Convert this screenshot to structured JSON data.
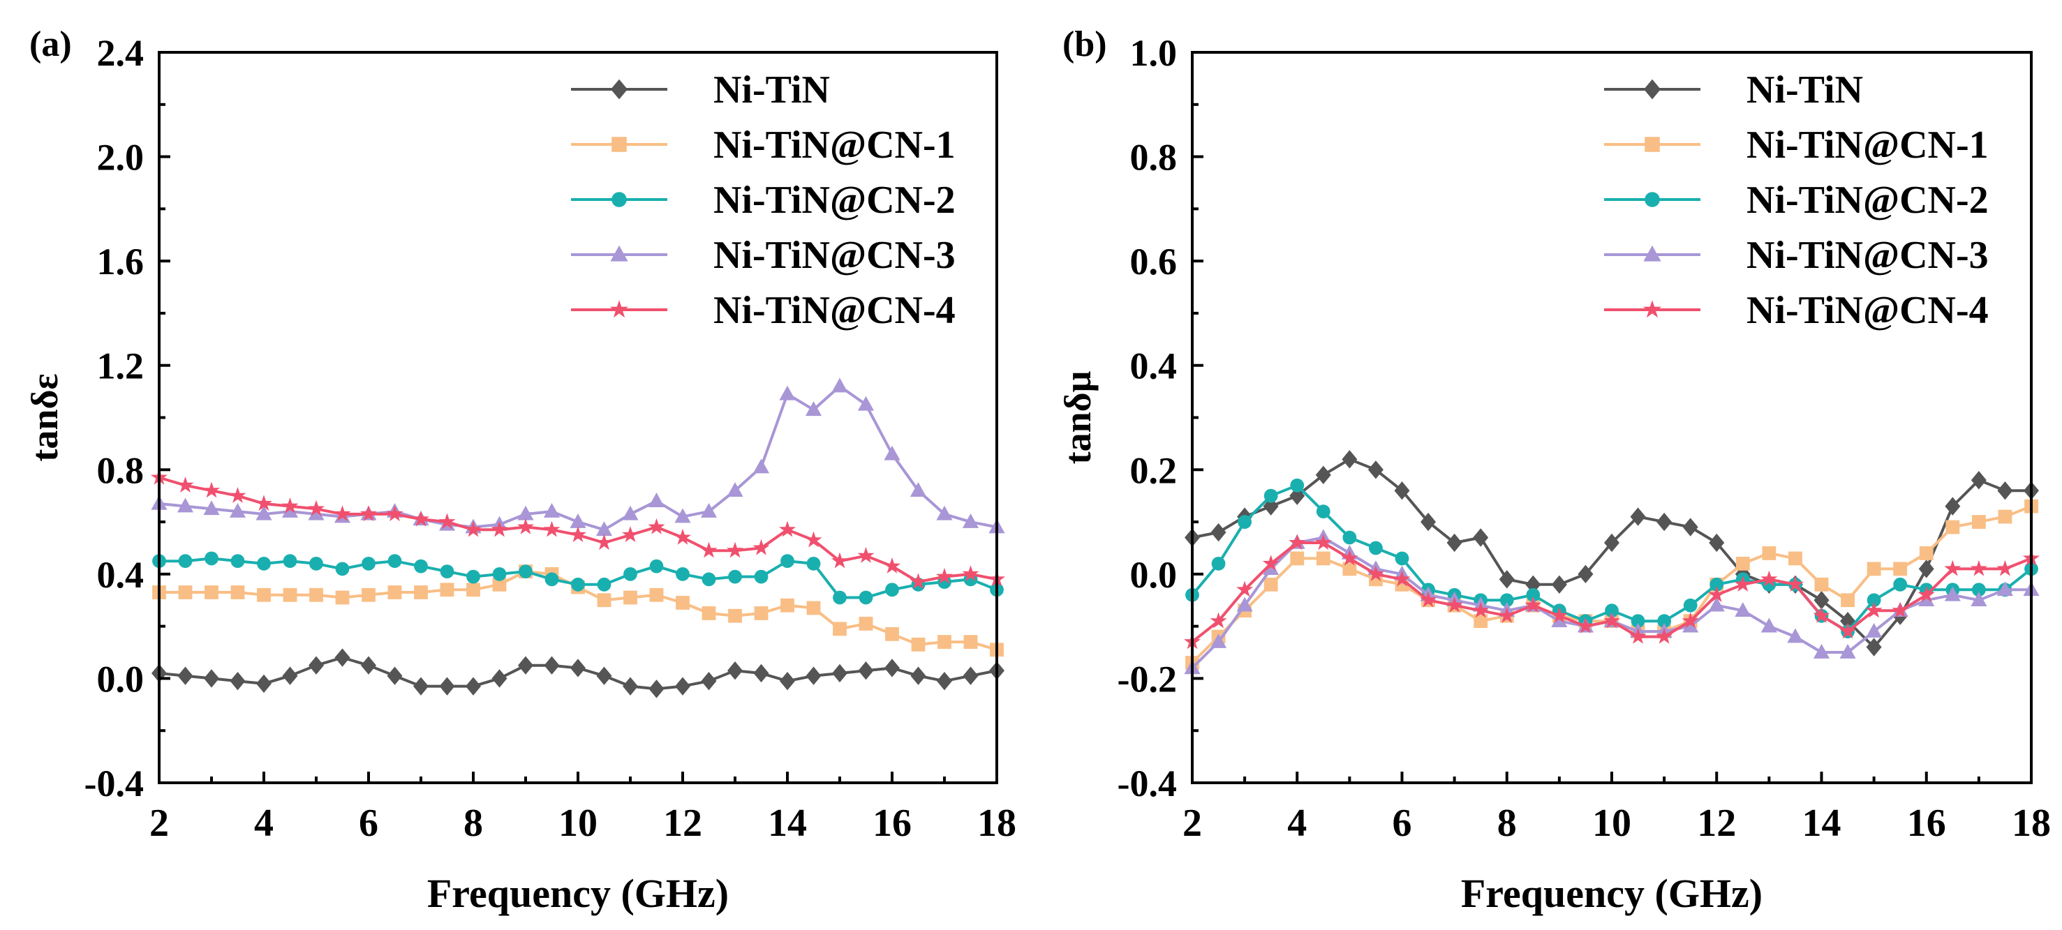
{
  "chart_data": [
    {
      "type": "line",
      "panel_label": "(a)",
      "xlabel": "Frequency (GHz)",
      "ylabel": "tanδε",
      "xlim": [
        2,
        18
      ],
      "ylim": [
        -0.4,
        2.4
      ],
      "xticks": [
        "2",
        "4",
        "6",
        "8",
        "10",
        "12",
        "14",
        "16",
        "18"
      ],
      "yticks": [
        "-0.4",
        "0.0",
        "0.4",
        "0.8",
        "1.2",
        "1.6",
        "2.0",
        "2.4"
      ],
      "legend_position": "top-right",
      "x": [
        2,
        2.5,
        3,
        3.5,
        4,
        4.5,
        5,
        5.5,
        6,
        6.5,
        7,
        7.5,
        8,
        8.5,
        9,
        9.5,
        10,
        10.5,
        11,
        11.5,
        12,
        12.5,
        13,
        13.5,
        14,
        14.5,
        15,
        15.5,
        16,
        16.5,
        17,
        17.5,
        18
      ],
      "series": [
        {
          "name": "Ni-TiN",
          "color": "#555555",
          "marker": "diamond",
          "values": [
            0.02,
            0.01,
            0.0,
            -0.01,
            -0.02,
            0.01,
            0.05,
            0.08,
            0.05,
            0.01,
            -0.03,
            -0.03,
            -0.03,
            0.0,
            0.05,
            0.05,
            0.04,
            0.01,
            -0.03,
            -0.04,
            -0.03,
            -0.01,
            0.03,
            0.02,
            -0.01,
            0.01,
            0.02,
            0.03,
            0.04,
            0.01,
            -0.01,
            0.01,
            0.03
          ]
        },
        {
          "name": "Ni-TiN@CN-1",
          "color": "#F9BE85",
          "marker": "square",
          "values": [
            0.33,
            0.33,
            0.33,
            0.33,
            0.32,
            0.32,
            0.32,
            0.31,
            0.32,
            0.33,
            0.33,
            0.34,
            0.34,
            0.36,
            0.41,
            0.4,
            0.35,
            0.3,
            0.31,
            0.32,
            0.29,
            0.25,
            0.24,
            0.25,
            0.28,
            0.27,
            0.19,
            0.21,
            0.17,
            0.13,
            0.14,
            0.14,
            0.11
          ]
        },
        {
          "name": "Ni-TiN@CN-2",
          "color": "#1AAFAF",
          "marker": "circle",
          "values": [
            0.45,
            0.45,
            0.46,
            0.45,
            0.44,
            0.45,
            0.44,
            0.42,
            0.44,
            0.45,
            0.43,
            0.41,
            0.39,
            0.4,
            0.41,
            0.38,
            0.36,
            0.36,
            0.4,
            0.43,
            0.4,
            0.38,
            0.39,
            0.39,
            0.45,
            0.44,
            0.31,
            0.31,
            0.34,
            0.36,
            0.37,
            0.38,
            0.34
          ]
        },
        {
          "name": "Ni-TiN@CN-3",
          "color": "#A896D6",
          "marker": "triangle",
          "values": [
            0.67,
            0.66,
            0.65,
            0.64,
            0.63,
            0.64,
            0.63,
            0.62,
            0.63,
            0.64,
            0.61,
            0.59,
            0.58,
            0.59,
            0.63,
            0.64,
            0.6,
            0.57,
            0.63,
            0.68,
            0.62,
            0.64,
            0.72,
            0.81,
            1.09,
            1.03,
            1.12,
            1.05,
            0.86,
            0.72,
            0.63,
            0.6,
            0.58
          ]
        },
        {
          "name": "Ni-TiN@CN-4",
          "color": "#F0506E",
          "marker": "star",
          "values": [
            0.77,
            0.74,
            0.72,
            0.7,
            0.67,
            0.66,
            0.65,
            0.63,
            0.63,
            0.63,
            0.61,
            0.6,
            0.57,
            0.57,
            0.58,
            0.57,
            0.55,
            0.52,
            0.55,
            0.58,
            0.54,
            0.49,
            0.49,
            0.5,
            0.57,
            0.53,
            0.45,
            0.47,
            0.43,
            0.37,
            0.39,
            0.4,
            0.38
          ]
        }
      ]
    },
    {
      "type": "line",
      "panel_label": "(b)",
      "xlabel": "Frequency (GHz)",
      "ylabel": "tanδμ",
      "xlim": [
        2,
        18
      ],
      "ylim": [
        -0.4,
        1.0
      ],
      "xticks": [
        "2",
        "4",
        "6",
        "8",
        "10",
        "12",
        "14",
        "16",
        "18"
      ],
      "yticks": [
        "-0.4",
        "-0.2",
        "0.0",
        "0.2",
        "0.4",
        "0.6",
        "0.8",
        "1.0"
      ],
      "legend_position": "top-right",
      "x": [
        2,
        2.5,
        3,
        3.5,
        4,
        4.5,
        5,
        5.5,
        6,
        6.5,
        7,
        7.5,
        8,
        8.5,
        9,
        9.5,
        10,
        10.5,
        11,
        11.5,
        12,
        12.5,
        13,
        13.5,
        14,
        14.5,
        15,
        15.5,
        16,
        16.5,
        17,
        17.5,
        18
      ],
      "series": [
        {
          "name": "Ni-TiN",
          "color": "#555555",
          "marker": "diamond",
          "values": [
            0.07,
            0.08,
            0.11,
            0.13,
            0.15,
            0.19,
            0.22,
            0.2,
            0.16,
            0.1,
            0.06,
            0.07,
            -0.01,
            -0.02,
            -0.02,
            0.0,
            0.06,
            0.11,
            0.1,
            0.09,
            0.06,
            0.0,
            -0.02,
            -0.02,
            -0.05,
            -0.09,
            -0.14,
            -0.08,
            0.01,
            0.13,
            0.18,
            0.16,
            0.16
          ]
        },
        {
          "name": "Ni-TiN@CN-1",
          "color": "#F9BE85",
          "marker": "square",
          "values": [
            -0.17,
            -0.12,
            -0.07,
            -0.02,
            0.03,
            0.03,
            0.01,
            -0.01,
            -0.02,
            -0.05,
            -0.06,
            -0.09,
            -0.08,
            -0.06,
            -0.08,
            -0.09,
            -0.09,
            -0.11,
            -0.11,
            -0.09,
            -0.02,
            0.02,
            0.04,
            0.03,
            -0.02,
            -0.05,
            0.01,
            0.01,
            0.04,
            0.09,
            0.1,
            0.11,
            0.13
          ]
        },
        {
          "name": "Ni-TiN@CN-2",
          "color": "#1AAFAF",
          "marker": "circle",
          "values": [
            -0.04,
            0.02,
            0.1,
            0.15,
            0.17,
            0.12,
            0.07,
            0.05,
            0.03,
            -0.03,
            -0.04,
            -0.05,
            -0.05,
            -0.04,
            -0.07,
            -0.09,
            -0.07,
            -0.09,
            -0.09,
            -0.06,
            -0.02,
            -0.01,
            -0.02,
            -0.02,
            -0.08,
            -0.11,
            -0.05,
            -0.02,
            -0.03,
            -0.03,
            -0.03,
            -0.03,
            0.01
          ]
        },
        {
          "name": "Ni-TiN@CN-3",
          "color": "#A896D6",
          "marker": "triangle",
          "values": [
            -0.18,
            -0.13,
            -0.06,
            0.01,
            0.06,
            0.07,
            0.04,
            0.01,
            0.0,
            -0.04,
            -0.05,
            -0.06,
            -0.07,
            -0.06,
            -0.09,
            -0.1,
            -0.09,
            -0.11,
            -0.11,
            -0.1,
            -0.06,
            -0.07,
            -0.1,
            -0.12,
            -0.15,
            -0.15,
            -0.11,
            -0.07,
            -0.05,
            -0.04,
            -0.05,
            -0.03,
            -0.03
          ]
        },
        {
          "name": "Ni-TiN@CN-4",
          "color": "#F0506E",
          "marker": "star",
          "values": [
            -0.13,
            -0.09,
            -0.03,
            0.02,
            0.06,
            0.06,
            0.03,
            0.0,
            -0.01,
            -0.05,
            -0.06,
            -0.07,
            -0.08,
            -0.06,
            -0.08,
            -0.1,
            -0.09,
            -0.12,
            -0.12,
            -0.09,
            -0.04,
            -0.02,
            -0.01,
            -0.02,
            -0.08,
            -0.11,
            -0.07,
            -0.07,
            -0.04,
            0.01,
            0.01,
            0.01,
            0.03
          ]
        }
      ]
    }
  ]
}
